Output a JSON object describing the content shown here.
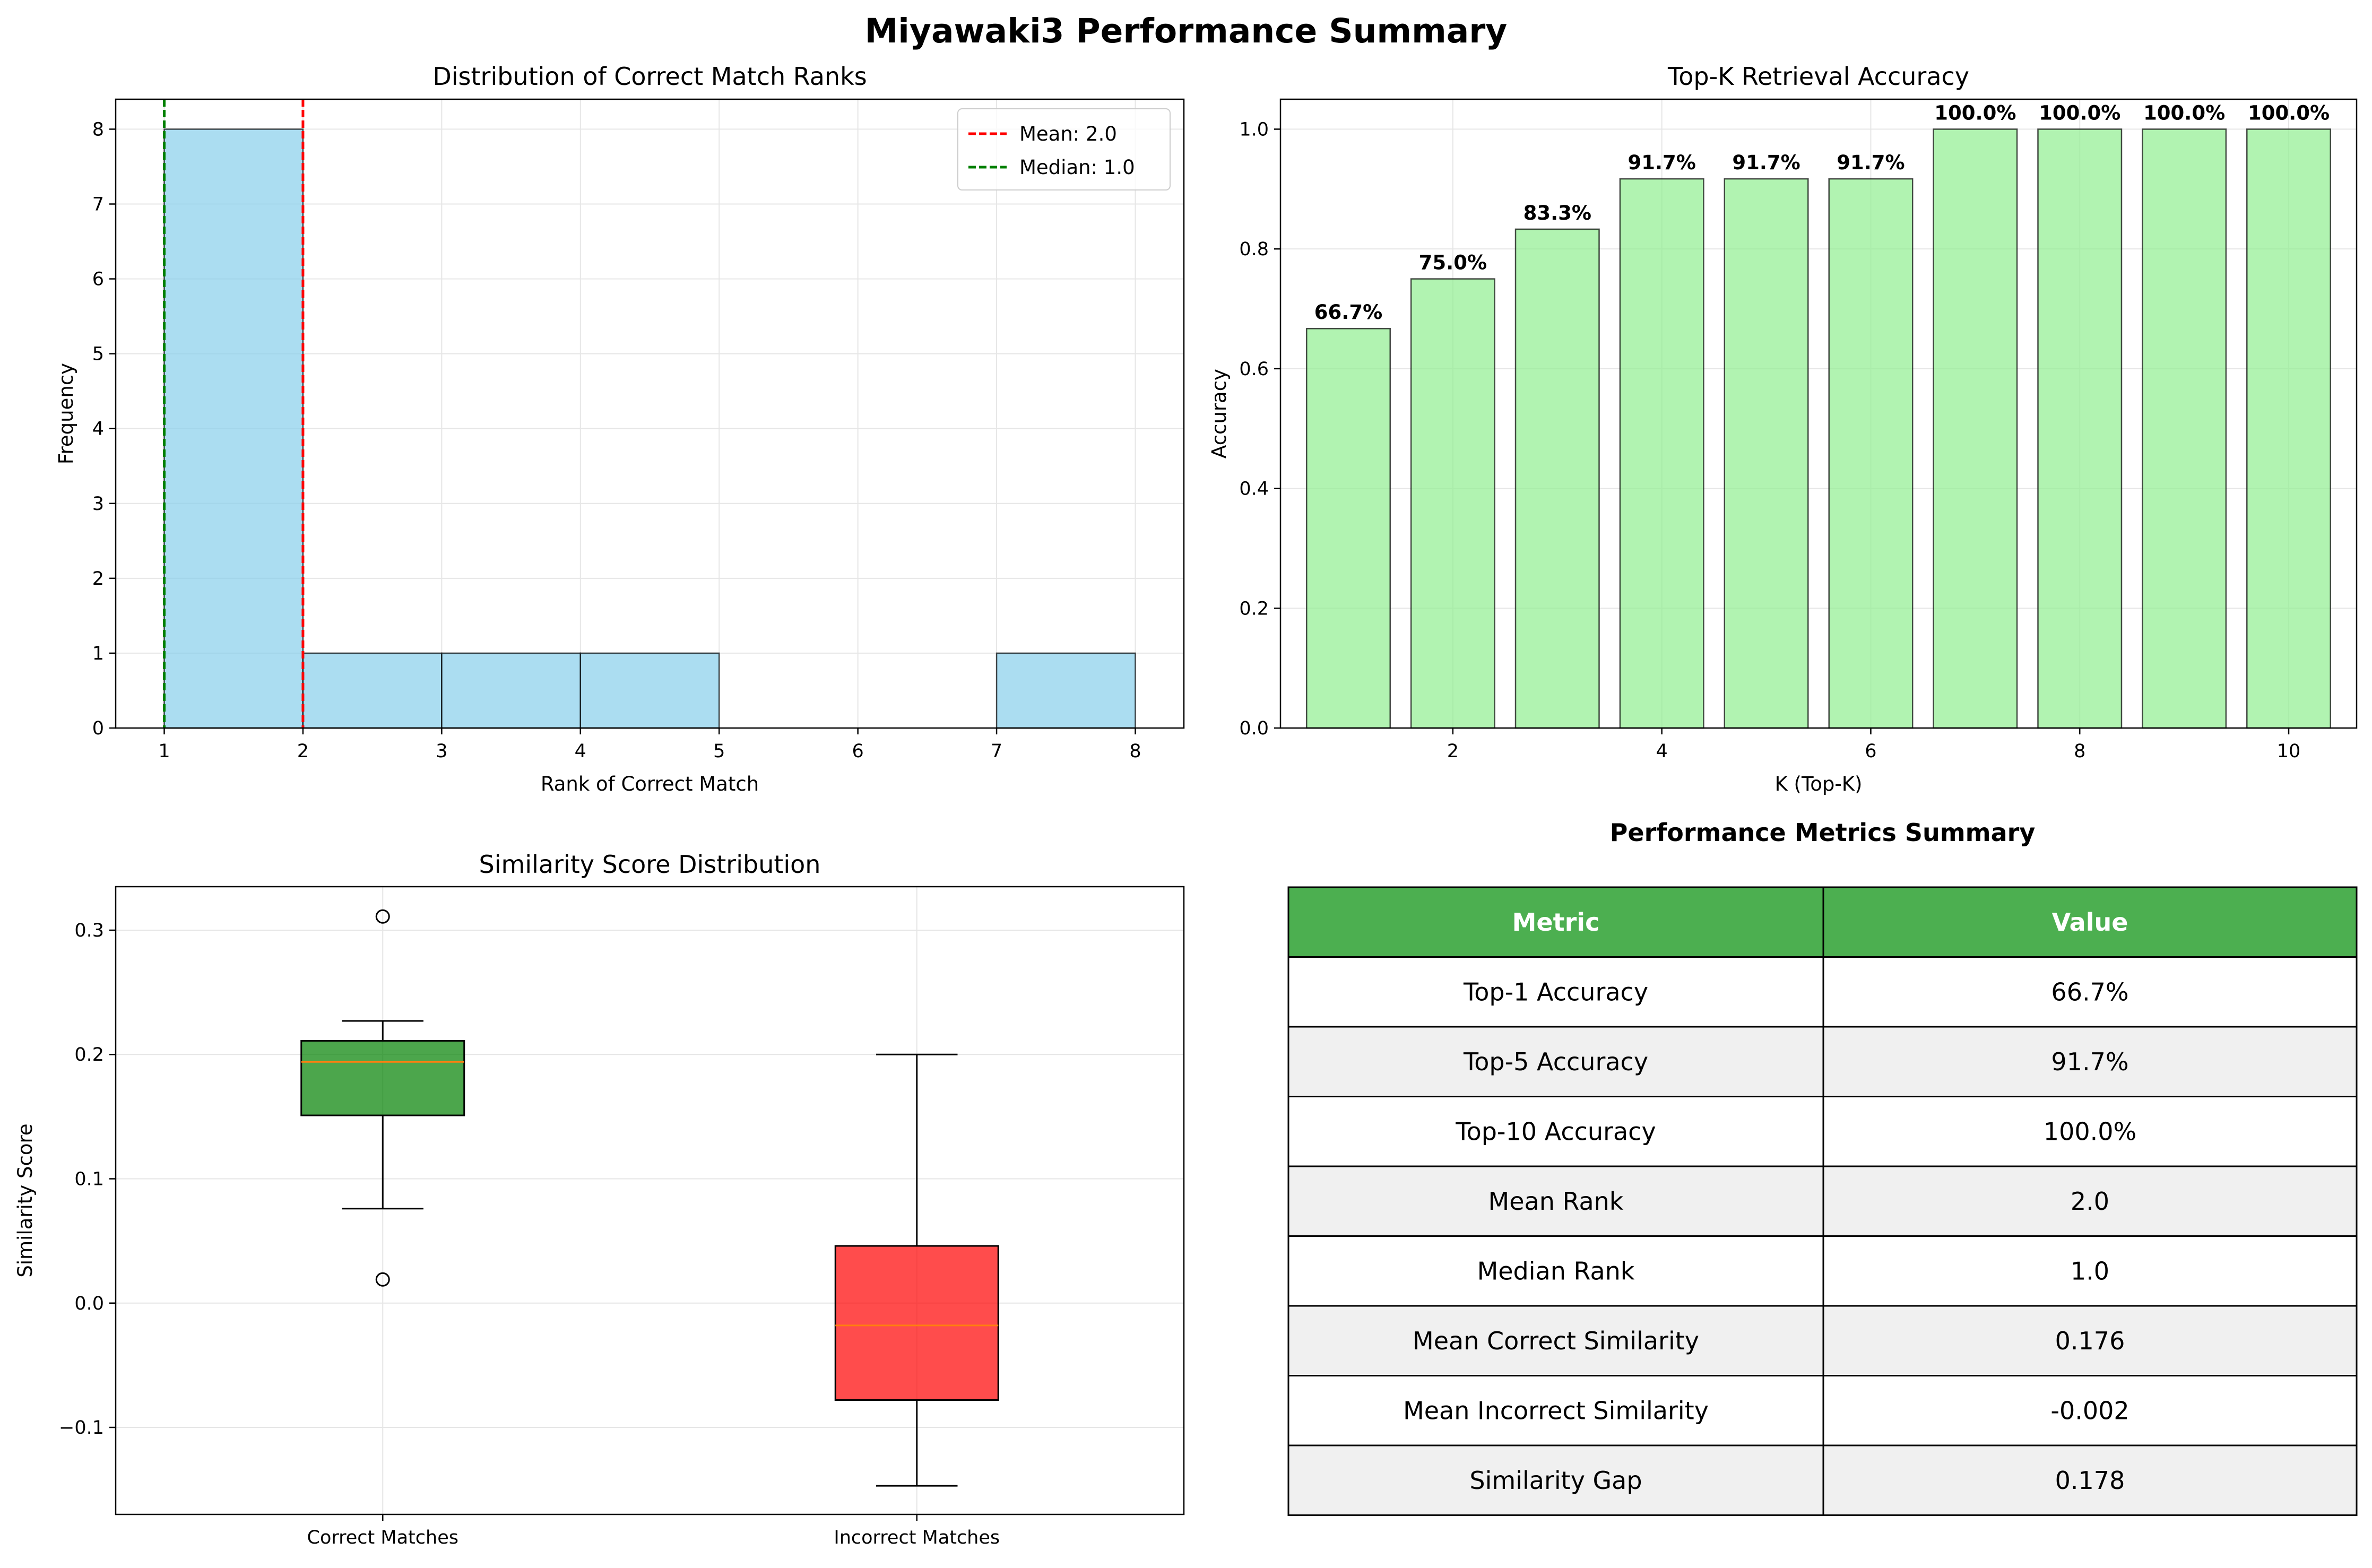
{
  "suptitle": "Miyawaki3 Performance Summary",
  "chart_data": [
    {
      "type": "bar",
      "subtype": "histogram",
      "title": "Distribution of Correct Match Ranks",
      "xlabel": "Rank of Correct Match",
      "ylabel": "Frequency",
      "bins": [
        [
          1,
          2
        ],
        [
          2,
          3
        ],
        [
          3,
          4
        ],
        [
          4,
          5
        ],
        [
          5,
          6
        ],
        [
          6,
          7
        ],
        [
          7,
          8
        ]
      ],
      "values": [
        8,
        1,
        1,
        1,
        0,
        0,
        1
      ],
      "xlim": [
        0.65,
        8.35
      ],
      "ylim": [
        0,
        8.4
      ],
      "xticks": [
        1,
        2,
        3,
        4,
        5,
        6,
        7,
        8
      ],
      "yticks": [
        0,
        1,
        2,
        3,
        4,
        5,
        6,
        7,
        8
      ],
      "bar_color": "#87ceeb",
      "grid": true,
      "legend_position": "top-right",
      "reference_lines": [
        {
          "label": "Mean: 2.0",
          "x": 2.0,
          "color": "#ff0000"
        },
        {
          "label": "Median: 1.0",
          "x": 1.0,
          "color": "#008000"
        }
      ]
    },
    {
      "type": "bar",
      "title": "Top-K Retrieval Accuracy",
      "xlabel": "K (Top-K)",
      "ylabel": "Accuracy",
      "categories": [
        1,
        2,
        3,
        4,
        5,
        6,
        7,
        8,
        9,
        10
      ],
      "values": [
        0.667,
        0.75,
        0.833,
        0.917,
        0.917,
        0.917,
        1.0,
        1.0,
        1.0,
        1.0
      ],
      "data_labels": [
        "66.7%",
        "75.0%",
        "83.3%",
        "91.7%",
        "91.7%",
        "91.7%",
        "100.0%",
        "100.0%",
        "100.0%",
        "100.0%"
      ],
      "xlim": [
        0.35,
        10.65
      ],
      "ylim": [
        0,
        1.05
      ],
      "xticks": [
        2,
        4,
        6,
        8,
        10
      ],
      "yticks": [
        "0.0",
        "0.2",
        "0.4",
        "0.6",
        "0.8",
        "1.0"
      ],
      "bar_color": "#90ee90",
      "grid": true
    },
    {
      "type": "box",
      "title": "Similarity Score Distribution",
      "xlabel": "",
      "ylabel": "Similarity Score",
      "ylim": [
        -0.17,
        0.335
      ],
      "yticks": [
        -0.1,
        0.0,
        0.1,
        0.2,
        0.3
      ],
      "ytick_labels": [
        "−0.1",
        "0.0",
        "0.1",
        "0.2",
        "0.3"
      ],
      "grid": true,
      "series": [
        {
          "name": "Correct Matches",
          "whisker_low": 0.076,
          "q1": 0.151,
          "median": 0.194,
          "q3": 0.211,
          "whisker_high": 0.227,
          "outliers": [
            0.311,
            0.019
          ],
          "color": "#008000"
        },
        {
          "name": "Incorrect Matches",
          "whisker_low": -0.147,
          "q1": -0.078,
          "median": -0.018,
          "q3": 0.046,
          "whisker_high": 0.2,
          "outliers": [],
          "color": "#ff0000"
        }
      ]
    },
    {
      "type": "table",
      "title": "Performance Metrics Summary",
      "columns": [
        "Metric",
        "Value"
      ],
      "header_color": "#4caf50",
      "stripe_color": "#f0f0f0",
      "rows": [
        [
          "Top-1 Accuracy",
          "66.7%"
        ],
        [
          "Top-5 Accuracy",
          "91.7%"
        ],
        [
          "Top-10 Accuracy",
          "100.0%"
        ],
        [
          "Mean Rank",
          "2.0"
        ],
        [
          "Median Rank",
          "1.0"
        ],
        [
          "Mean Correct Similarity",
          "0.176"
        ],
        [
          "Mean Incorrect Similarity",
          "-0.002"
        ],
        [
          "Similarity Gap",
          "0.178"
        ]
      ]
    }
  ]
}
